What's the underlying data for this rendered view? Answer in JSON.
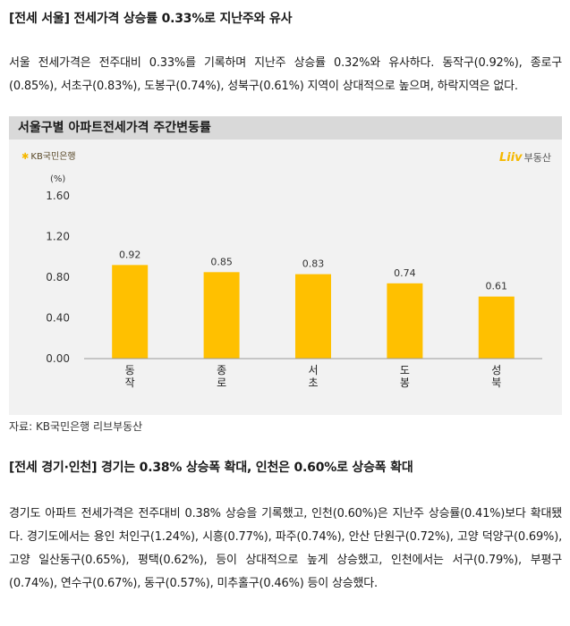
{
  "section1": {
    "tag": "[전세 서울]",
    "title": "전세가격 상승률 0.33%로 지난주와 유사",
    "paragraph": "서울 전세가격은 전주대비 0.33%를 기록하며 지난주 상승률 0.32%와 유사하다. 동작구(0.92%), 종로구(0.85%), 서초구(0.83%), 도봉구(0.74%), 성북구(0.61%) 지역이 상대적으로 높으며, 하락지역은 없다."
  },
  "chart_box": {
    "title": "서울구별 아파트전세가격 주간변동률",
    "logo_kb": "KB국민은행",
    "logo_liiv": "Liiv",
    "logo_liiv_suffix": "부동산"
  },
  "chart_data": {
    "type": "bar",
    "unit_label": "(%)",
    "categories": [
      "동작",
      "종로",
      "서초",
      "도봉",
      "성북"
    ],
    "values": [
      0.92,
      0.85,
      0.83,
      0.74,
      0.61
    ],
    "value_labels": [
      "0.92",
      "0.85",
      "0.83",
      "0.74",
      "0.61"
    ],
    "yticks": [
      "1.60",
      "1.20",
      "0.80",
      "0.40",
      "0.00"
    ],
    "ytick_values": [
      1.6,
      1.2,
      0.8,
      0.4,
      0.0
    ],
    "ylim": [
      0,
      1.6
    ],
    "bar_color": "#ffc000",
    "grid": false
  },
  "source": "자료: KB국민은행 리브부동산",
  "section2": {
    "tag": "[전세 경기·인천]",
    "title": "경기는 0.38% 상승폭 확대, 인천은 0.60%로 상승폭 확대",
    "paragraph": "경기도 아파트 전세가격은 전주대비 0.38% 상승을 기록했고, 인천(0.60%)은 지난주 상승률(0.41%)보다 확대됐다. 경기도에서는 용인 처인구(1.24%), 시흥(0.77%), 파주(0.74%), 안산 단원구(0.72%), 고양 덕양구(0.69%), 고양 일산동구(0.65%), 평택(0.62%), 등이 상대적으로 높게 상승했고, 인천에서는 서구(0.79%), 부평구(0.74%), 연수구(0.67%), 동구(0.57%), 미추홀구(0.46%) 등이 상승했다."
  }
}
